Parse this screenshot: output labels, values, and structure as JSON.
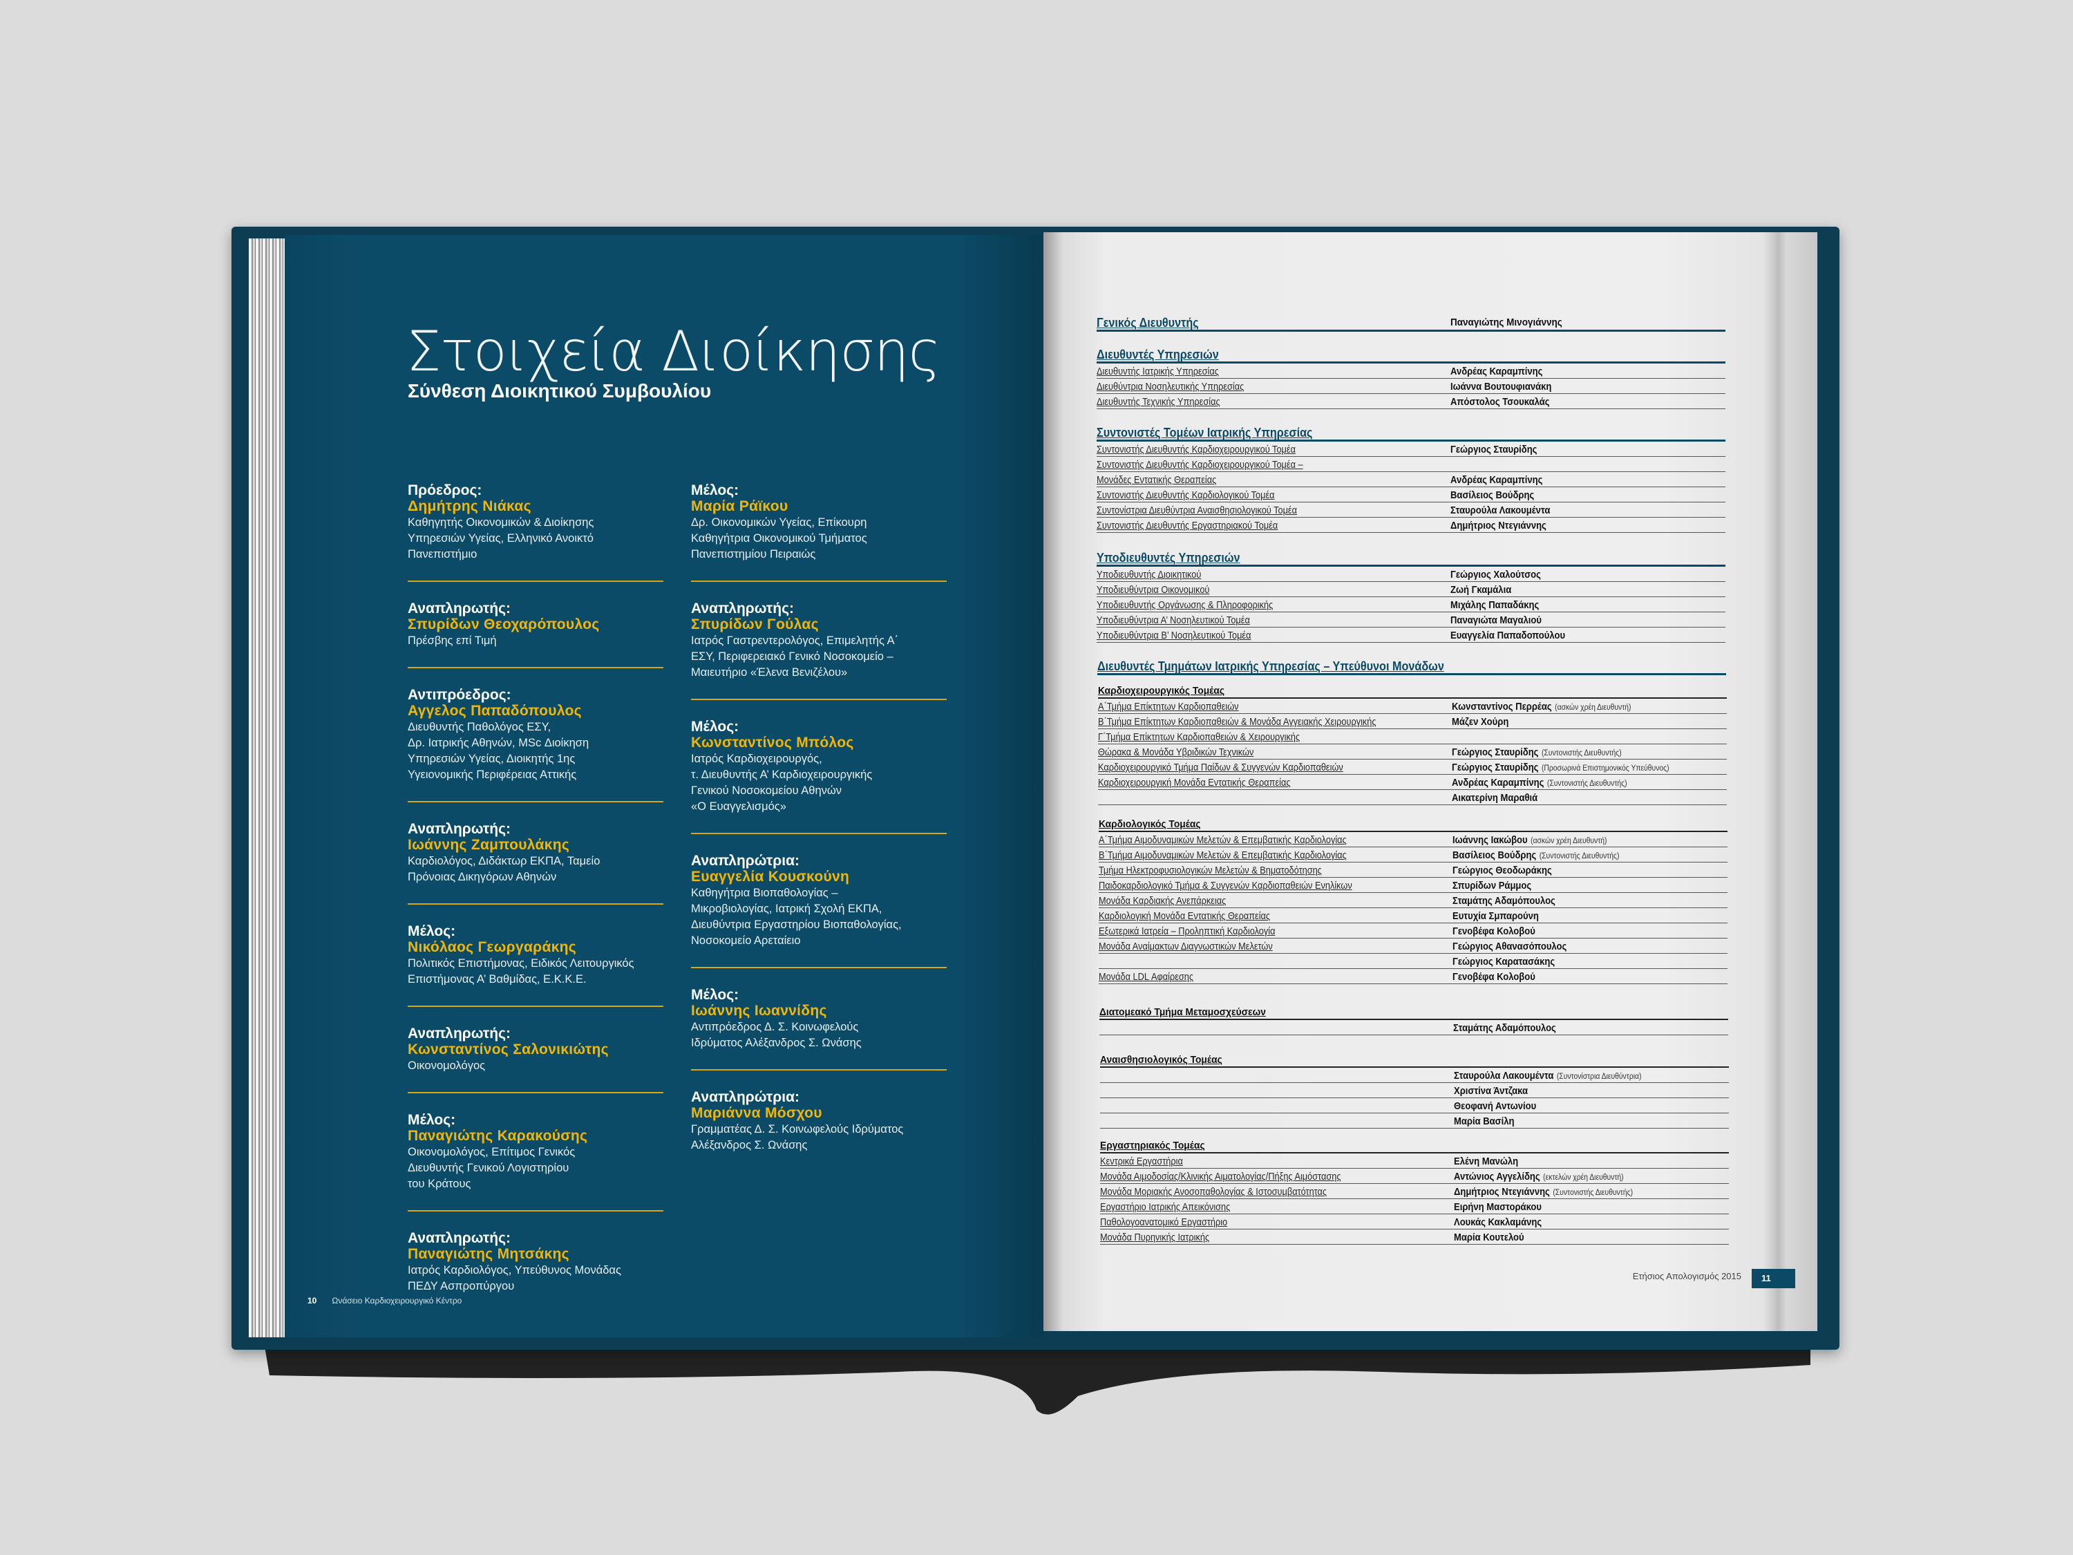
{
  "colors": {
    "page_blue": "#0c4b67",
    "accent_yellow": "#f2b705",
    "background": "#dcdcdc",
    "right_page": "#ececec"
  },
  "left_page": {
    "title": "Στοιχεία Διοίκησης",
    "subtitle": "Σύνθεση Διοικητικού Συμβουλίου",
    "columns": [
      [
        {
          "role": "Πρόεδρος:",
          "name": "Δημήτρης Νιάκας",
          "desc": "Καθηγητής Οικονομικών & Διοίκησης\nΥπηρεσιών Υγείας, Ελληνικό Ανοικτό\nΠανεπιστήμιο"
        },
        {
          "role": "Αναπληρωτής:",
          "name": "Σπυρίδων Θεοχαρόπουλος",
          "desc": "Πρέσβης επί Τιμή"
        },
        {
          "role": "Αντιπρόεδρος:",
          "name": "Αγγελος Παπαδόπουλος",
          "desc": "Διευθυντής Παθολόγος ΕΣΥ,\nΔρ. Ιατρικής Αθηνών, MSc Διοίκηση\nΥπηρεσιών Υγείας, Διοικητής 1ης\nΥγειονομικής Περιφέρειας Αττικής"
        },
        {
          "role": "Αναπληρωτής:",
          "name": "Ιωάννης Ζαμπουλάκης",
          "desc": "Καρδιολόγος, Διδάκτωρ ΕΚΠΑ, Ταμείο\nΠρόνοιας Δικηγόρων Αθηνών"
        },
        {
          "role": "Μέλος:",
          "name": "Νικόλαος Γεωργαράκης",
          "desc": "Πολιτικός Επιστήμονας, Ειδικός Λειτουργικός\nΕπιστήμονας Α’ Βαθμίδας, Ε.Κ.Κ.Ε."
        },
        {
          "role": "Αναπληρωτής:",
          "name": "Κωνσταντίνος Σαλονικιώτης",
          "desc": "Οικονομολόγος"
        },
        {
          "role": "Μέλος:",
          "name": "Παναγιώτης Καρακούσης",
          "desc": "Οικονομολόγος, Επίτιμος Γενικός\nΔιευθυντής Γενικού Λογιστηρίου\nτου Κράτους"
        },
        {
          "role": "Αναπληρωτής:",
          "name": "Παναγιώτης Μητσάκης",
          "desc": "Ιατρός Καρδιολόγος, Υπεύθυνος Μονάδας\nΠΕΔΥ Ασπροπύργου"
        }
      ],
      [
        {
          "role": "Μέλος:",
          "name": "Μαρία Ράϊκου",
          "desc": "Δρ. Οικονομικών Υγείας, Επίκουρη\nΚαθηγήτρια Οικονομικού Τμήματος\nΠανεπιστημίου Πειραιώς"
        },
        {
          "role": "Αναπληρωτής:",
          "name": "Σπυρίδων Γούλας",
          "desc": "Ιατρός Γαστρεντερολόγος, Επιμελητής Α΄\nΕΣΥ, Περιφερειακό Γενικό Νοσοκομείο –\nΜαιευτήριο «Έλενα Βενιζέλου»"
        },
        {
          "role": "Μέλος:",
          "name": "Κωνσταντίνος Μπόλος",
          "desc": "Ιατρός Καρδιοχειρουργός,\nτ. Διευθυντής Α’ Καρδιοχειρουργικής\nΓενικού Νοσοκομείου Αθηνών\n«Ο Ευαγγελισμός»"
        },
        {
          "role": "Αναπληρώτρια:",
          "name": "Ευαγγελία Κουσκούνη",
          "desc": "Καθηγήτρια Βιοπαθολογίας –\nΜικροβιολογίας, Ιατρική Σχολή ΕΚΠΑ,\nΔιευθύντρια Εργαστηρίου Βιοπαθολογίας,\nΝοσοκομείο Αρεταίειο"
        },
        {
          "role": "Μέλος:",
          "name": "Ιωάννης Ιωαννίδης",
          "desc": "Αντιπρόεδρος Δ. Σ. Κοινωφελούς\nΙδρύματος Αλέξανδρος Σ. Ωνάσης"
        },
        {
          "role": "Αναπληρώτρια:",
          "name": "Μαριάννα Μόσχου",
          "desc": "Γραμματέας Δ. Σ. Κοινωφελούς Ιδρύματος\nΑλέξανδρος Σ. Ωνάσης"
        }
      ]
    ],
    "footer": {
      "page_number": "10",
      "text": "Ωνάσειο Καρδιοχειρουργικό Κέντρο"
    }
  },
  "right_page": {
    "sections": [
      {
        "heading": "Γενικός Διευθυντής",
        "type": "main",
        "heading_name": "Παναγιώτης Μινογιάννης",
        "rows": []
      },
      {
        "heading": "Διευθυντές Υπηρεσιών",
        "type": "main",
        "rows": [
          {
            "label": "Διευθυντής Ιατρικής Υπηρεσίας",
            "name": "Ανδρέας Καραμπίνης"
          },
          {
            "label": "Διευθύντρια Νοσηλευτικής Υπηρεσίας",
            "name": "Ιωάννα Βουτουφιανάκη"
          },
          {
            "label": "Διευθυντής Τεχνικής Υπηρεσίας",
            "name": "Απόστολος Τσουκαλάς"
          }
        ]
      },
      {
        "heading": "Συντονιστές Τομέων Ιατρικής Υπηρεσίας",
        "type": "main",
        "rows": [
          {
            "label": "Συντονιστής Διευθυντής Καρδιοχειρουργικού Τομέα",
            "name": "Γεώργιος Σταυρίδης"
          },
          {
            "label": "Συντονιστής Διευθυντής Καρδιοχειρουργικού Τομέα –",
            "name": ""
          },
          {
            "label": "Μονάδες Εντατικής Θεραπείας",
            "name": "Ανδρέας Καραμπίνης"
          },
          {
            "label": "Συντονιστής Διευθυντής Καρδιολογικού Τομέα",
            "name": "Βασίλειος Βούδρης"
          },
          {
            "label": "Συντονίστρια Διευθύντρια Αναισθησιολογικού Τομέα",
            "name": "Σταυρούλα Λακουμέντα"
          },
          {
            "label": "Συντονιστής Διευθυντής Εργαστηριακού Τομέα",
            "name": "Δημήτριος Ντεγιάννης"
          }
        ]
      },
      {
        "heading": "Υποδιευθυντές Υπηρεσιών",
        "type": "main",
        "rows": [
          {
            "label": "Υποδιευθυντής Διοικητικού",
            "name": "Γεώργιος Χαλούτσος"
          },
          {
            "label": "Υποδιευθύντρια Οικονομικού",
            "name": "Ζωή Γκαμάλια"
          },
          {
            "label": "Υποδιευθυντής Οργάνωσης & Πληροφορικής",
            "name": "Μιχάλης Παπαδάκης"
          },
          {
            "label": "Υποδιευθύντρια Α’ Νοσηλευτικού Τομέα",
            "name": "Παναγιώτα Μαγαλιού"
          },
          {
            "label": "Υποδιευθύντρια Β’ Νοσηλευτικού Τομέα",
            "name": "Ευαγγελία Παπαδοπούλου"
          }
        ]
      },
      {
        "heading": "Διευθυντές Τμημάτων Ιατρικής Υπηρεσίας – Υπεύθυνοι Μονάδων",
        "type": "main",
        "rows": []
      },
      {
        "heading": "Καρδιοχειρουργικός Τομέας",
        "type": "sub",
        "rows": [
          {
            "label": "Α΄Τμήμα Επίκτητων Καρδιοπαθειών",
            "name": "Κωνσταντίνος Περρέας",
            "note": "(ασκών χρέη Διευθυντή)"
          },
          {
            "label": "Β΄Τμήμα Επίκτητων Καρδιοπαθειών & Μονάδα Αγγειακής Χειρουργικής",
            "name": "Μάζεν Χούρη"
          },
          {
            "label": "Γ΄Τμήμα Επίκτητων Καρδιοπαθειών & Χειρουργικής",
            "name": ""
          },
          {
            "label": "Θώρακα & Μονάδα Υβριδικών Τεχνικών",
            "name": "Γεώργιος Σταυρίδης",
            "note": "(Συντονιστής Διευθυντής)"
          },
          {
            "label": "Καρδιοχειρουργικό Τμήμα Παίδων & Συγγενών Καρδιοπαθειών",
            "name": "Γεώργιος Σταυρίδης",
            "note": "(Προσωρινά Επιστημονικός Υπεύθυνος)"
          },
          {
            "label": "Καρδιοχειρουργική Μονάδα Εντατικής Θεραπείας",
            "name": "Ανδρέας Καραμπίνης",
            "note": "(Συντονιστής Διευθυντής)"
          },
          {
            "label": "",
            "name": "Αικατερίνη Μαραθιά"
          }
        ]
      },
      {
        "heading": "Καρδιολογικός Τομέας",
        "type": "sub",
        "rows": [
          {
            "label": "Α΄Τμήμα Αιμοδυναμικών Μελετών & Επεμβατικής Καρδιολογίας",
            "name": "Ιωάννης Ιακώβου",
            "note": "(ασκών χρέη Διευθυντή)"
          },
          {
            "label": "Β΄Τμήμα Αιμοδυναμικών Μελετών & Επεμβατικής Καρδιολογίας",
            "name": "Βασίλειος Βούδρης",
            "note": "(Συντονιστής Διευθυντής)"
          },
          {
            "label": "Τμήμα Ηλεκτροφυσιολογικών Μελετών & Βηματοδότησης",
            "name": "Γεώργιος Θεοδωράκης"
          },
          {
            "label": "Παιδοκαρδιολογικό Τμήμα & Συγγενών Καρδιοπαθειών Ενηλίκων",
            "name": "Σπυρίδων Ράμμος"
          },
          {
            "label": "Μονάδα Καρδιακής Ανεπάρκειας",
            "name": "Σταμάτης Αδαμόπουλος"
          },
          {
            "label": "Καρδιολογική Μονάδα Εντατικής Θεραπείας",
            "name": "Ευτυχία Σμπαρούνη"
          },
          {
            "label": "Εξωτερικά Ιατρεία – Προληπτική Καρδιολογία",
            "name": "Γενοβέφα Κολοβού"
          },
          {
            "label": "Μονάδα Αναίμακτων Διαγνωστικών Μελετών",
            "name": "Γεώργιος Αθανασόπουλος"
          },
          {
            "label": "",
            "name": "Γεώργιος Καρατασάκης"
          },
          {
            "label": "Μονάδα LDL Αφαίρεσης",
            "name": "Γενοβέφα Κολοβού"
          }
        ]
      },
      {
        "heading": "Διατομεακό Τμήμα Μεταμοσχεύσεων",
        "type": "sub",
        "rows": [
          {
            "label": "",
            "name": "Σταμάτης Αδαμόπουλος"
          }
        ]
      },
      {
        "heading": "Αναισθησιολογικός Τομέας",
        "type": "sub",
        "rows": [
          {
            "label": "",
            "name": "Σταυρούλα Λακουμέντα",
            "note": "(Συντονίστρια Διευθύντρια)"
          },
          {
            "label": "",
            "name": "Χριστίνα  Άντζακα"
          },
          {
            "label": "",
            "name": "Θεοφανή Αντωνίου"
          },
          {
            "label": "",
            "name": "Μαρία Βασίλη"
          }
        ]
      },
      {
        "heading": "Εργαστηριακός Τομέας",
        "type": "sub",
        "rows": [
          {
            "label": "Κεντρικά Εργαστήρια",
            "name": "Ελένη Μανώλη"
          },
          {
            "label": "Μονάδα Αιμοδοσίας/Κλινικής Αιματολογίας/Πήξης Αιμόστασης",
            "name": "Αντώνιος Αγγελίδης",
            "note": "(εκτελών χρέη Διευθυντή)"
          },
          {
            "label": "Μονάδα Μοριακής Ανοσοπαθολογίας & Ιστοσυμβατότητας",
            "name": "Δημήτριος Ντεγιάννης",
            "note": "(Συντονιστής Διευθυντής)"
          },
          {
            "label": "Εργαστήριο Ιατρικής Απεικόνισης",
            "name": "Ειρήνη Μαστοράκου"
          },
          {
            "label": "Παθολογοανατομικό Εργαστήριο",
            "name": "Λουκάς Κακλαμάνης"
          },
          {
            "label": "Μονάδα Πυρηνικής Ιατρικής",
            "name": "Μαρία Κουτελού"
          }
        ]
      }
    ],
    "footer": {
      "text": "Ετήσιος Απολογισμός 2015",
      "page_number": "11"
    }
  }
}
